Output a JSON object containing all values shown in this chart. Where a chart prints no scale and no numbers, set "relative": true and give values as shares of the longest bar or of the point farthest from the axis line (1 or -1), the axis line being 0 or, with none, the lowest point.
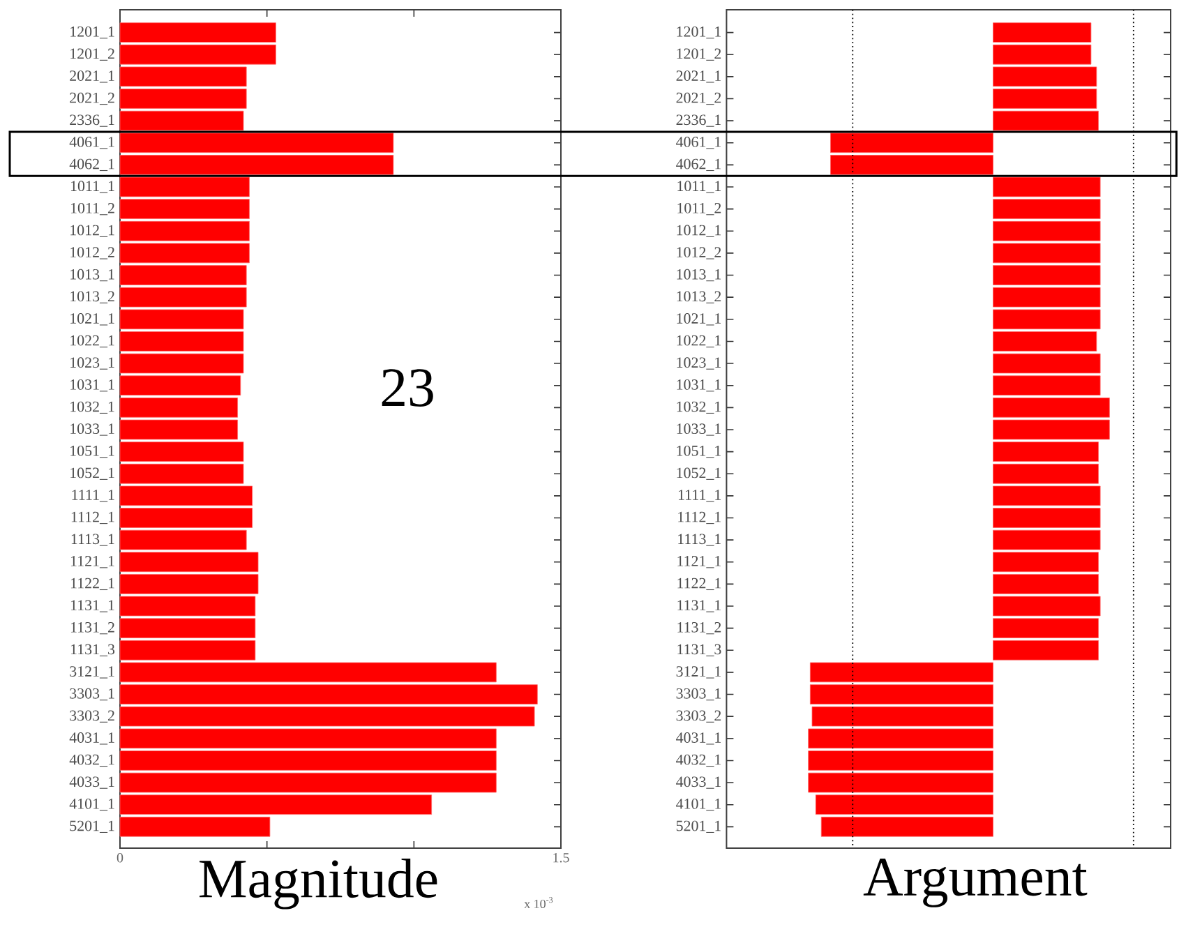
{
  "chart_data": [
    {
      "type": "bar",
      "orientation": "horizontal",
      "xlabel": "Magnitude",
      "color": "#ff0000",
      "categories": [
        "1201_1",
        "1201_2",
        "2021_1",
        "2021_2",
        "2336_1",
        "4061_1",
        "4062_1",
        "1011_1",
        "1011_2",
        "1012_1",
        "1012_2",
        "1013_1",
        "1013_2",
        "1021_1",
        "1022_1",
        "1023_1",
        "1031_1",
        "1032_1",
        "1033_1",
        "1051_1",
        "1052_1",
        "1111_1",
        "1112_1",
        "1113_1",
        "1121_1",
        "1122_1",
        "1131_1",
        "1131_2",
        "1131_3",
        "3121_1",
        "3303_1",
        "3303_2",
        "4031_1",
        "4032_1",
        "4033_1",
        "4101_1",
        "5201_1"
      ],
      "values": [
        0.53,
        0.53,
        0.43,
        0.43,
        0.42,
        0.93,
        0.93,
        0.44,
        0.44,
        0.44,
        0.44,
        0.43,
        0.43,
        0.42,
        0.42,
        0.42,
        0.41,
        0.4,
        0.4,
        0.42,
        0.42,
        0.45,
        0.45,
        0.43,
        0.47,
        0.47,
        0.46,
        0.46,
        0.46,
        1.28,
        1.42,
        1.41,
        1.28,
        1.28,
        1.28,
        1.06,
        0.51
      ],
      "xlim": [
        0,
        1.5
      ],
      "xticks": [
        0,
        {
          "value": 0.5,
          "label": null
        },
        {
          "value": 1,
          "label": null
        },
        1.5
      ],
      "annotations": [
        "23",
        "x 10$^{-3}$"
      ]
    },
    {
      "type": "bar",
      "orientation": "horizontal",
      "xlabel": "Argument",
      "color": "#ff0000",
      "relative": true,
      "categories": [
        "1201_1",
        "1201_2",
        "2021_1",
        "2021_2",
        "2336_1",
        "4061_1",
        "4062_1",
        "1011_1",
        "1011_2",
        "1012_1",
        "1012_2",
        "1013_1",
        "1013_2",
        "1021_1",
        "1022_1",
        "1023_1",
        "1031_1",
        "1032_1",
        "1033_1",
        "1051_1",
        "1052_1",
        "1111_1",
        "1112_1",
        "1113_1",
        "1121_1",
        "1122_1",
        "1131_1",
        "1131_2",
        "1131_3",
        "3121_1",
        "3303_1",
        "3303_2",
        "4031_1",
        "4032_1",
        "4033_1",
        "4101_1",
        "5201_1"
      ],
      "values": [
        0.53,
        0.53,
        0.56,
        0.56,
        0.57,
        -0.88,
        -0.88,
        0.58,
        0.58,
        0.58,
        0.58,
        0.58,
        0.58,
        0.58,
        0.56,
        0.58,
        0.58,
        0.63,
        0.63,
        0.57,
        0.57,
        0.58,
        0.58,
        0.58,
        0.57,
        0.57,
        0.58,
        0.57,
        0.57,
        -0.99,
        -0.99,
        -0.98,
        -1,
        -1,
        -1,
        -0.96,
        -0.93
      ],
      "ref_lines": [
        {
          "axis": "x",
          "value": -0.76,
          "line_style": "dotted"
        },
        {
          "axis": "x",
          "value": 0.76,
          "line_style": "dotted"
        }
      ]
    }
  ]
}
